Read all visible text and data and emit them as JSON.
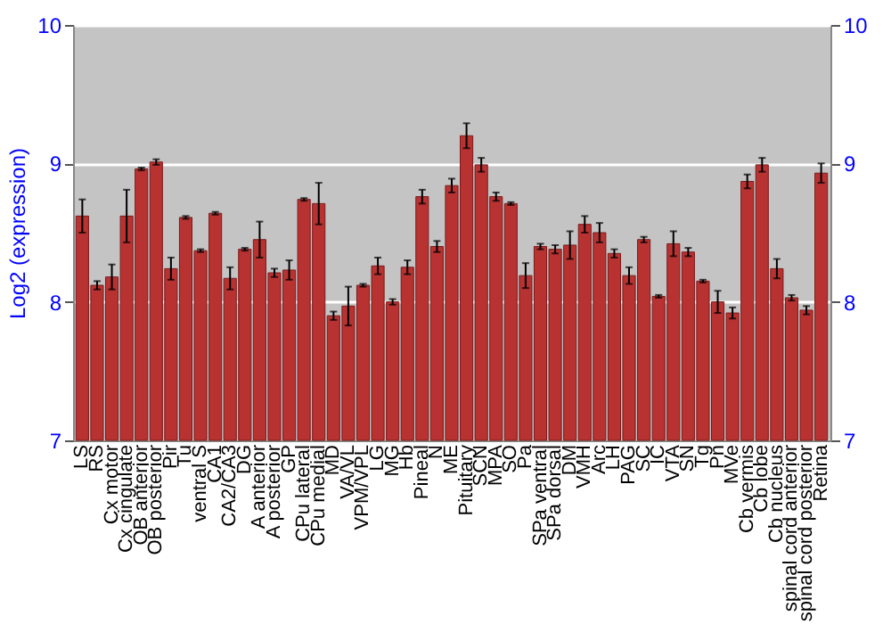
{
  "chart_data": {
    "type": "bar",
    "ylabel": "Log2 (expression)",
    "categories": [
      "LS",
      "RS",
      "Cx motor",
      "Cx cingulate",
      "OB anterior",
      "OB posterior",
      "Pir",
      "Tu",
      "ventral S",
      "CA1",
      "CA2/CA3",
      "DG",
      "A anterior",
      "A posterior",
      "GP",
      "CPu lateral",
      "CPu medial",
      "MD",
      "VA/VL",
      "VPM/VPL",
      "LG",
      "MG",
      "Hb",
      "Pineal",
      "N",
      "ME",
      "Pituitary",
      "SCN",
      "MPA",
      "SO",
      "Pa",
      "SPa ventral",
      "SPa dorsal",
      "DM",
      "VMH",
      "Arc",
      "LH",
      "PAG",
      "SC",
      "IC",
      "VTA",
      "SN",
      "Tg",
      "Pn",
      "MVe",
      "Cb vermis",
      "Cb lobe",
      "Cb nucleus",
      "spinal cord anterior",
      "spinal cord posterior",
      "Retina"
    ],
    "values": [
      8.62,
      8.12,
      8.18,
      8.62,
      8.96,
      9.01,
      8.24,
      8.61,
      8.37,
      8.64,
      8.17,
      8.38,
      8.45,
      8.21,
      8.23,
      8.74,
      8.71,
      7.9,
      7.97,
      8.12,
      8.26,
      8.0,
      8.25,
      8.76,
      8.4,
      8.84,
      9.2,
      8.99,
      8.76,
      8.71,
      8.19,
      8.4,
      8.38,
      8.41,
      8.56,
      8.5,
      8.35,
      8.19,
      8.45,
      8.04,
      8.42,
      8.36,
      8.15,
      8.0,
      7.92,
      8.87,
      8.99,
      8.24,
      8.03,
      7.94,
      8.93
    ],
    "errors": [
      0.12,
      0.03,
      0.09,
      0.19,
      0.01,
      0.02,
      0.08,
      0.01,
      0.01,
      0.01,
      0.08,
      0.01,
      0.13,
      0.03,
      0.07,
      0.01,
      0.15,
      0.03,
      0.14,
      0.01,
      0.06,
      0.02,
      0.05,
      0.05,
      0.04,
      0.05,
      0.09,
      0.05,
      0.03,
      0.01,
      0.09,
      0.02,
      0.03,
      0.1,
      0.06,
      0.07,
      0.03,
      0.06,
      0.02,
      0.01,
      0.09,
      0.03,
      0.01,
      0.08,
      0.04,
      0.05,
      0.05,
      0.07,
      0.02,
      0.03,
      0.07
    ],
    "color": "#b83232",
    "ylim": [
      7,
      10
    ],
    "yticks": [
      7,
      8,
      9,
      10
    ],
    "y2lim": [
      7,
      10
    ],
    "y2ticks": [
      7,
      8,
      9,
      10
    ],
    "grid": "y"
  }
}
